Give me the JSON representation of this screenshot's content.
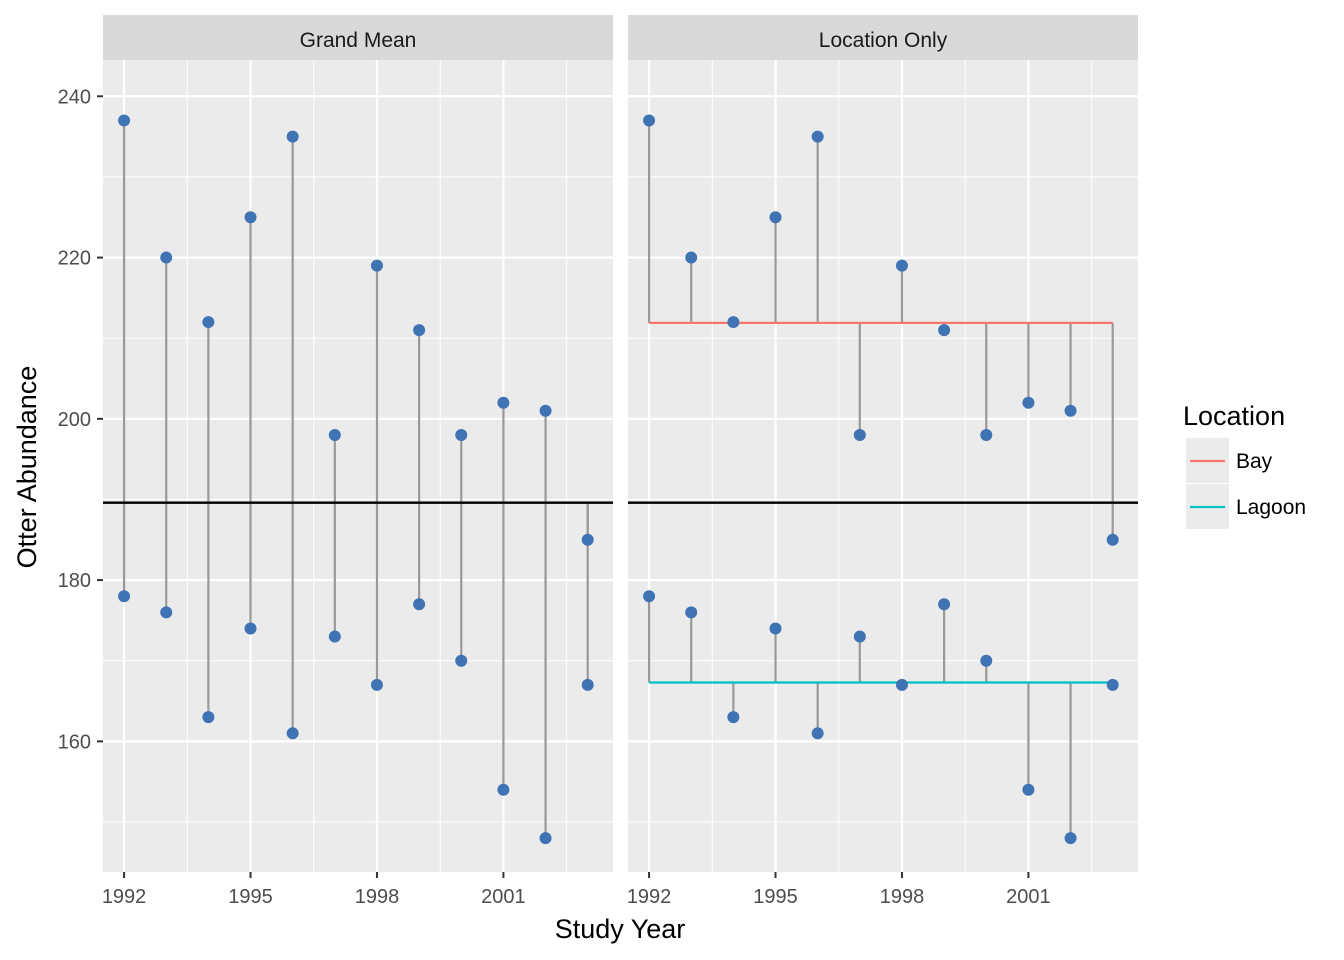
{
  "chart_data": {
    "type": "scatter",
    "xlabel": "Study Year",
    "ylabel": "Otter Abundance",
    "x_ticks": [
      "1992",
      "1995",
      "1998",
      "2001"
    ],
    "y_ticks": [
      "160",
      "180",
      "200",
      "220",
      "240"
    ],
    "xlim": [
      1991.5,
      2003.6
    ],
    "ylim": [
      143.8,
      244.5
    ],
    "grand_mean": 189.6,
    "grid": true,
    "legend": {
      "title": "Location",
      "placement": "right",
      "entries": [
        {
          "label": "Bay",
          "color": "#F8766D"
        },
        {
          "label": "Lagoon",
          "color": "#00BFC4"
        }
      ]
    },
    "colors": {
      "point": "#3F73B3",
      "residual": "#999999",
      "mean_line": "#000000",
      "panel_bg": "#EBEBEB",
      "strip_bg": "#D9D9D9",
      "bay": "#F8766D",
      "lagoon": "#00BFC4"
    },
    "location_means": {
      "Bay": 211.9,
      "Lagoon": 167.3
    },
    "series": [
      {
        "location": "Bay",
        "x": [
          1992,
          1993,
          1994,
          1995,
          1996,
          1997,
          1998,
          1999,
          2000,
          2001,
          2002,
          2003
        ],
        "y": [
          237,
          220,
          212,
          225,
          235,
          198,
          219,
          211,
          198,
          202,
          201,
          185
        ]
      },
      {
        "location": "Lagoon",
        "x": [
          1992,
          1993,
          1994,
          1995,
          1996,
          1997,
          1998,
          1999,
          2000,
          2001,
          2002,
          2003
        ],
        "y": [
          178,
          176,
          163,
          174,
          161,
          173,
          167,
          177,
          170,
          154,
          148,
          167
        ]
      }
    ],
    "panels": [
      {
        "strip": "Grand Mean",
        "reference": "grand"
      },
      {
        "strip": "Location Only",
        "reference": "location"
      }
    ]
  }
}
